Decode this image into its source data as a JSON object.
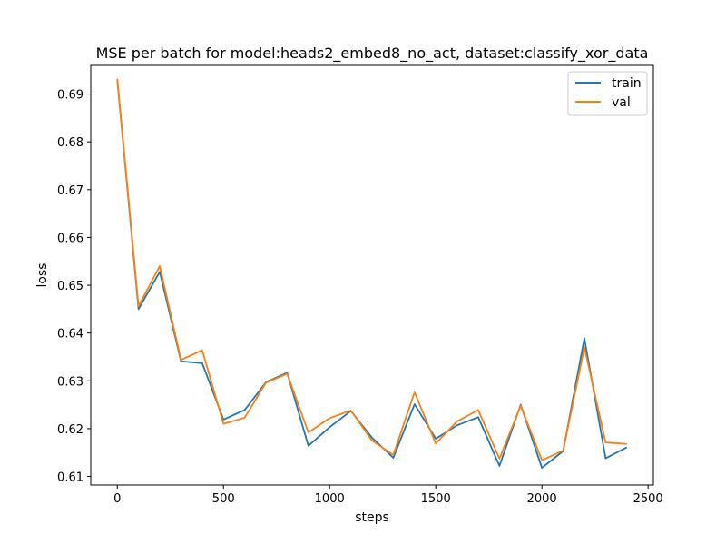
{
  "chart_data": {
    "type": "line",
    "title": "MSE per batch for model:heads2_embed8_no_act, dataset:classify_xor_data",
    "xlabel": "steps",
    "ylabel": "loss",
    "xlim": [
      -125,
      2525
    ],
    "ylim": [
      0.6082,
      0.696
    ],
    "xticks": [
      0,
      500,
      1000,
      1500,
      2000,
      2500
    ],
    "yticks": [
      0.61,
      0.62,
      0.63,
      0.64,
      0.65,
      0.66,
      0.67,
      0.68,
      0.69
    ],
    "legend_position": "top-right",
    "grid": false,
    "x": [
      0,
      100,
      200,
      300,
      400,
      500,
      600,
      700,
      800,
      900,
      1000,
      1100,
      1200,
      1300,
      1400,
      1500,
      1600,
      1700,
      1800,
      1900,
      2000,
      2100,
      2200,
      2300,
      2400
    ],
    "series": [
      {
        "name": "train",
        "color": "#1f77b4",
        "values": [
          0.693,
          0.645,
          0.6528,
          0.6341,
          0.6337,
          0.6219,
          0.6239,
          0.6297,
          0.6317,
          0.6164,
          0.6203,
          0.6237,
          0.6181,
          0.6139,
          0.6251,
          0.6179,
          0.6207,
          0.6224,
          0.6122,
          0.625,
          0.6118,
          0.6153,
          0.6389,
          0.6138,
          0.6161
        ]
      },
      {
        "name": "val",
        "color": "#ff7f0e",
        "values": [
          0.6932,
          0.6456,
          0.654,
          0.6344,
          0.6364,
          0.621,
          0.6223,
          0.6296,
          0.6315,
          0.6192,
          0.6222,
          0.6238,
          0.6175,
          0.6145,
          0.6276,
          0.6169,
          0.6215,
          0.6239,
          0.6137,
          0.6248,
          0.6134,
          0.6154,
          0.637,
          0.6171,
          0.6168
        ]
      }
    ]
  }
}
